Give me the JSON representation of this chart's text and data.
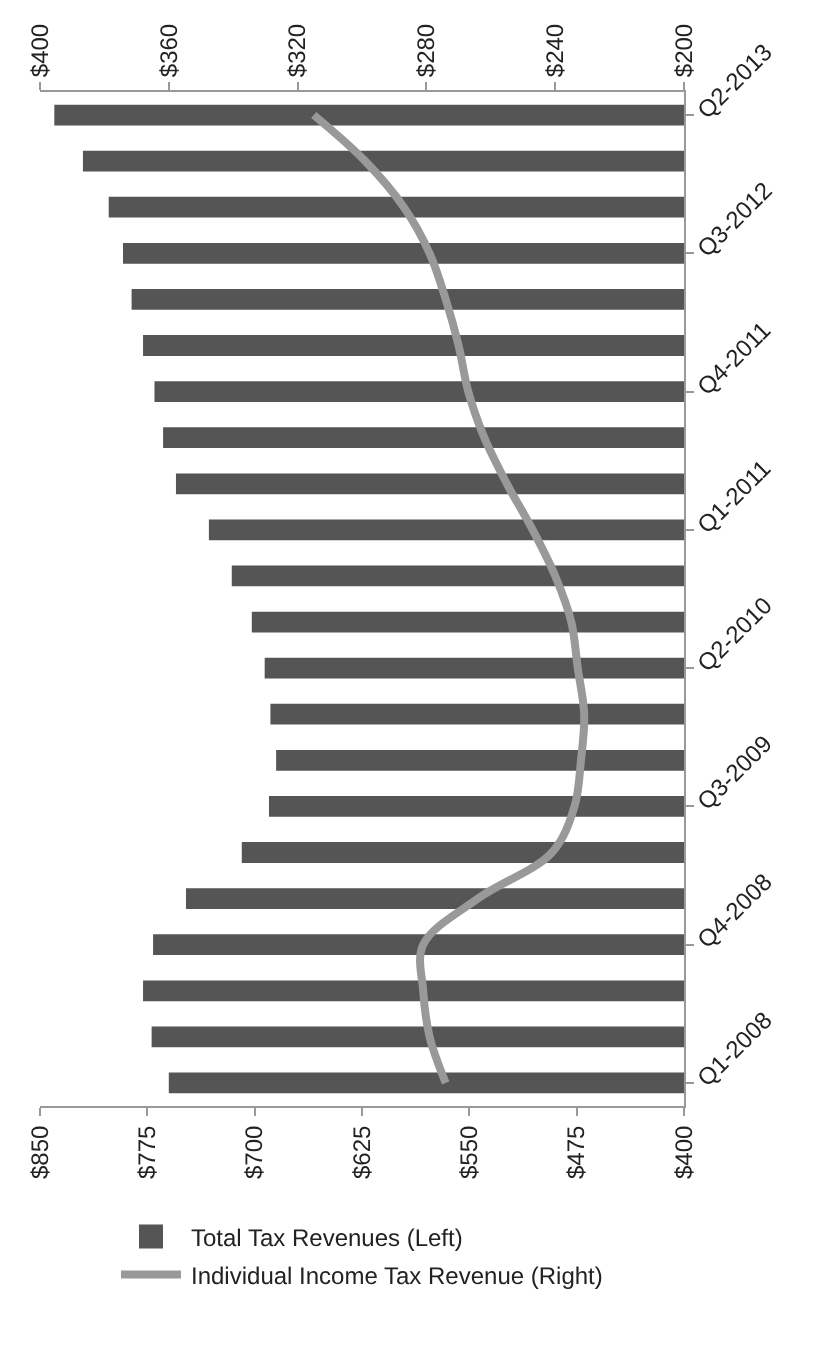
{
  "chart_data": {
    "type": "bar",
    "orientation": "horizontal",
    "categories": [
      "Q2-2013",
      null,
      null,
      "Q3-2012",
      null,
      null,
      "Q4-2011",
      null,
      null,
      "Q1-2011",
      null,
      null,
      "Q2-2010",
      null,
      null,
      "Q3-2009",
      null,
      null,
      "Q4-2008",
      null,
      null,
      "Q1-2008"
    ],
    "series": [
      {
        "name": "Total Tax Revenues (Left)",
        "color": "#555555",
        "values": [
          840,
          820,
          802,
          792,
          786,
          778,
          770,
          764,
          755,
          732,
          716,
          702,
          693,
          689,
          685,
          690,
          709,
          748,
          771,
          778,
          772,
          760
        ]
      },
      {
        "name": "Individual Income Tax Revenue (Right)",
        "type": "line",
        "axis": "x2",
        "color": "#999999",
        "values": [
          315,
          299,
          287,
          279,
          274,
          270,
          267,
          262,
          255,
          247,
          240,
          235,
          233,
          231,
          232,
          234,
          241,
          264,
          281,
          281,
          279,
          274
        ]
      }
    ],
    "xlim": [
      850,
      400
    ],
    "xticks": [
      {
        "value": 850,
        "label": "$850"
      },
      {
        "value": 775,
        "label": "$775"
      },
      {
        "value": 700,
        "label": "$700"
      },
      {
        "value": 625,
        "label": "$625"
      },
      {
        "value": 550,
        "label": "$550"
      },
      {
        "value": 475,
        "label": "$475"
      },
      {
        "value": 400,
        "label": "$400"
      }
    ],
    "x2lim": [
      400,
      200
    ],
    "x2ticks": [
      {
        "value": 400,
        "label": "$400"
      },
      {
        "value": 360,
        "label": "$360"
      },
      {
        "value": 320,
        "label": "$320"
      },
      {
        "value": 280,
        "label": "$280"
      },
      {
        "value": 240,
        "label": "$240"
      },
      {
        "value": 200,
        "label": "$200"
      }
    ],
    "legend": "bottom"
  }
}
